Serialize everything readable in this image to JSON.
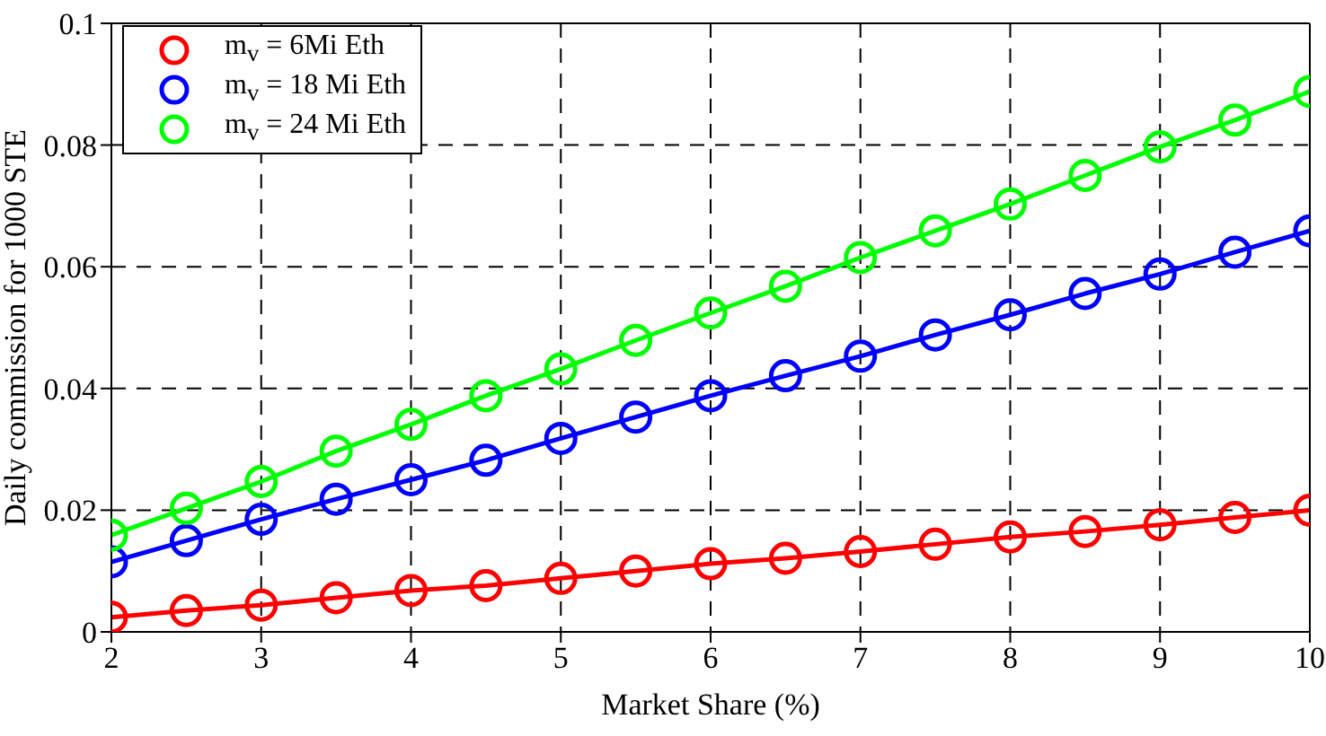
{
  "chart_data": {
    "type": "line",
    "xlabel": "Market Share (%)",
    "ylabel": "Daily commission for 1000 STE",
    "x": [
      2,
      2.5,
      3,
      3.5,
      4,
      4.5,
      5,
      5.5,
      6,
      6.5,
      7,
      7.5,
      8,
      8.5,
      9,
      9.5,
      10
    ],
    "series": [
      {
        "name": "m$_{v}$ = 6Mi Eth",
        "color": "#ff0000",
        "values": [
          0.0024,
          0.0035,
          0.0044,
          0.0056,
          0.0068,
          0.0076,
          0.0088,
          0.01,
          0.0112,
          0.0121,
          0.0132,
          0.0144,
          0.0156,
          0.0165,
          0.0176,
          0.0188,
          0.02
        ]
      },
      {
        "name": "m$_{v}$ = 18 Mi Eth",
        "color": "#0000ff",
        "values": [
          0.0115,
          0.015,
          0.0185,
          0.0218,
          0.025,
          0.0282,
          0.0318,
          0.0353,
          0.0388,
          0.0421,
          0.0453,
          0.0488,
          0.0521,
          0.0556,
          0.0588,
          0.0624,
          0.0659
        ]
      },
      {
        "name": "m$_{v}$ = 24 Mi Eth",
        "color": "#00ff00",
        "values": [
          0.0159,
          0.0203,
          0.0247,
          0.0297,
          0.0341,
          0.0388,
          0.0432,
          0.0479,
          0.0524,
          0.0568,
          0.0615,
          0.0659,
          0.0703,
          0.075,
          0.0797,
          0.0841,
          0.0888
        ]
      }
    ],
    "xlim": [
      2,
      10
    ],
    "xticks": [
      2,
      3,
      4,
      5,
      6,
      7,
      8,
      9,
      10
    ],
    "ylim": [
      0,
      0.1
    ],
    "yticks": [
      0,
      0.02,
      0.04,
      0.06,
      0.08,
      0.1
    ],
    "grid": true,
    "legend": "top left",
    "marker": "circle",
    "line_style": "solid"
  }
}
